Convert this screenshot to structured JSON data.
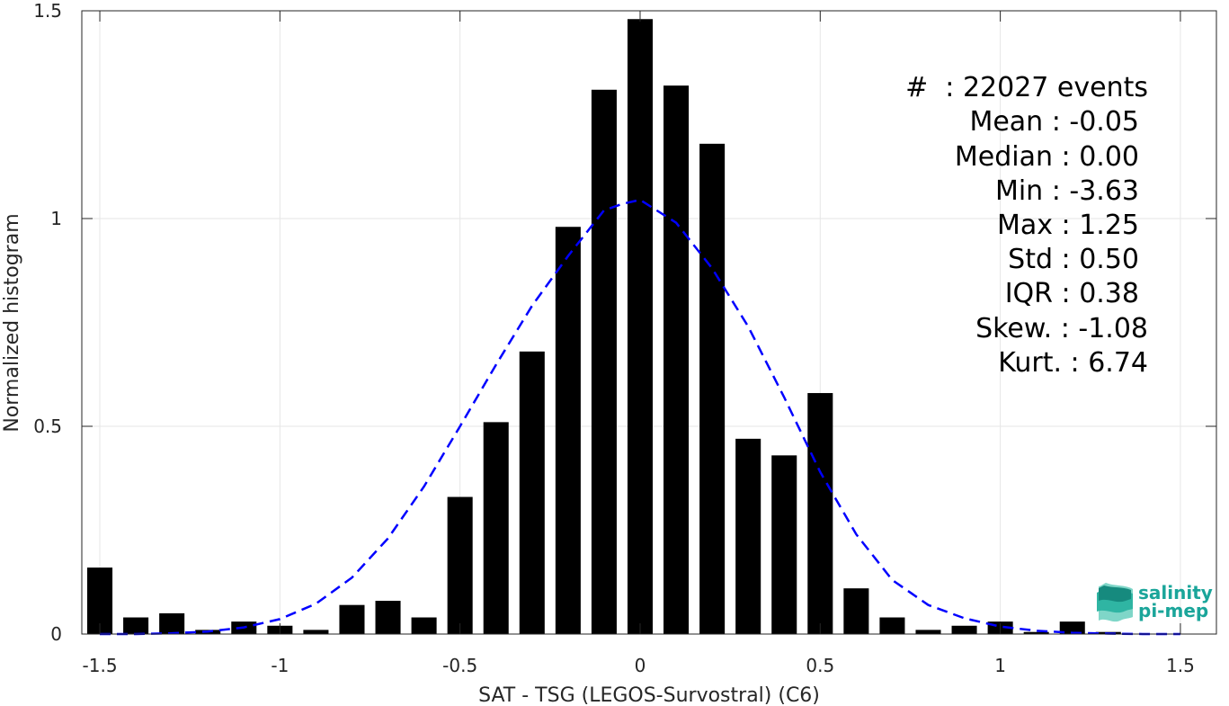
{
  "chart_data": {
    "type": "bar",
    "xlabel": "SAT - TSG (LEGOS-Survostral) (C6)",
    "ylabel": "Normalized histogram",
    "xlim": [
      -1.55,
      1.6
    ],
    "ylim": [
      0,
      1.5
    ],
    "xticks": [
      -1.5,
      -1,
      -0.5,
      0,
      0.5,
      1,
      1.5
    ],
    "xtick_labels": [
      "-1.5",
      "-1",
      "-0.5",
      "0",
      "0.5",
      "1",
      "1.5"
    ],
    "yticks": [
      0,
      0.5,
      1,
      1.5
    ],
    "ytick_labels": [
      "0",
      "0.5",
      "1",
      "1.5"
    ],
    "grid": true,
    "bar_color": "#000000",
    "bar_width": 0.07,
    "bins": [
      {
        "x": -1.5,
        "value": 0.16
      },
      {
        "x": -1.4,
        "value": 0.04
      },
      {
        "x": -1.3,
        "value": 0.05
      },
      {
        "x": -1.2,
        "value": 0.01
      },
      {
        "x": -1.1,
        "value": 0.03
      },
      {
        "x": -1.0,
        "value": 0.02
      },
      {
        "x": -0.9,
        "value": 0.01
      },
      {
        "x": -0.8,
        "value": 0.07
      },
      {
        "x": -0.7,
        "value": 0.08
      },
      {
        "x": -0.6,
        "value": 0.04
      },
      {
        "x": -0.5,
        "value": 0.33
      },
      {
        "x": -0.4,
        "value": 0.51
      },
      {
        "x": -0.3,
        "value": 0.68
      },
      {
        "x": -0.2,
        "value": 0.98
      },
      {
        "x": -0.1,
        "value": 1.31
      },
      {
        "x": 0.0,
        "value": 1.48
      },
      {
        "x": 0.1,
        "value": 1.32
      },
      {
        "x": 0.2,
        "value": 1.18
      },
      {
        "x": 0.3,
        "value": 0.47
      },
      {
        "x": 0.4,
        "value": 0.43
      },
      {
        "x": 0.5,
        "value": 0.58
      },
      {
        "x": 0.6,
        "value": 0.11
      },
      {
        "x": 0.7,
        "value": 0.04
      },
      {
        "x": 0.8,
        "value": 0.01
      },
      {
        "x": 0.9,
        "value": 0.02
      },
      {
        "x": 1.0,
        "value": 0.03
      },
      {
        "x": 1.1,
        "value": 0.005
      },
      {
        "x": 1.2,
        "value": 0.03
      },
      {
        "x": 1.3,
        "value": 0.005
      }
    ],
    "fit_curve": {
      "style": "dashed",
      "color": "#0000ff",
      "points": [
        [
          -1.5,
          0.0
        ],
        [
          -1.4,
          0.0
        ],
        [
          -1.3,
          0.002
        ],
        [
          -1.2,
          0.006
        ],
        [
          -1.1,
          0.016
        ],
        [
          -1.0,
          0.036
        ],
        [
          -0.9,
          0.073
        ],
        [
          -0.8,
          0.136
        ],
        [
          -0.7,
          0.23
        ],
        [
          -0.6,
          0.355
        ],
        [
          -0.5,
          0.5
        ],
        [
          -0.4,
          0.648
        ],
        [
          -0.3,
          0.79
        ],
        [
          -0.2,
          0.91
        ],
        [
          -0.1,
          1.02
        ],
        [
          -0.05,
          1.035
        ],
        [
          0.0,
          1.045
        ],
        [
          0.1,
          0.99
        ],
        [
          0.2,
          0.88
        ],
        [
          0.3,
          0.74
        ],
        [
          0.4,
          0.57
        ],
        [
          0.5,
          0.39
        ],
        [
          0.6,
          0.24
        ],
        [
          0.7,
          0.13
        ],
        [
          0.8,
          0.07
        ],
        [
          0.9,
          0.038
        ],
        [
          1.0,
          0.018
        ],
        [
          1.1,
          0.008
        ],
        [
          1.2,
          0.003
        ],
        [
          1.3,
          0.001
        ],
        [
          1.4,
          0.0
        ],
        [
          1.5,
          0.0
        ]
      ]
    },
    "annotations": [
      "#  : 22027 events",
      "Mean : -0.05",
      "Median : 0.00",
      "Min : -3.63",
      "Max : 1.25",
      "Std : 0.50",
      "IQR : 0.38",
      "Skew. : -1.08",
      "Kurt. : 6.74"
    ]
  },
  "logo": {
    "line1": "salinity",
    "line2": "pi-mep",
    "color": "#1aa59a"
  }
}
